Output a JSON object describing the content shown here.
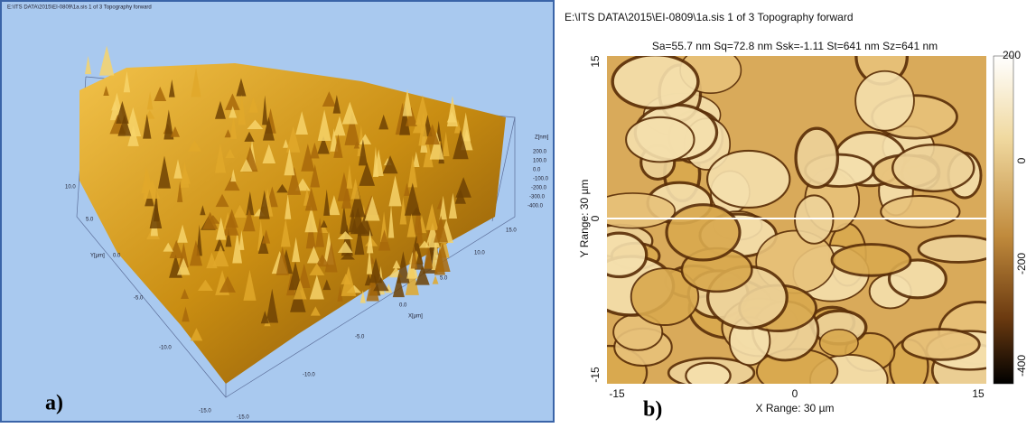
{
  "panel_a": {
    "title": "E:\\ITS DATA\\2015\\EI-0809\\1a.sis 1 of 3 Topography forward",
    "z_axis": {
      "label": "Z[nm]",
      "ticks": [
        "200.0",
        "100.0",
        "0.0",
        "-100.0",
        "-200.0",
        "-300.0",
        "-400.0"
      ]
    },
    "y_axis": {
      "label": "Y[µm]",
      "ticks": [
        "10.0",
        "5.0",
        "0.0",
        "-5.0",
        "-10.0",
        "-15.0"
      ]
    },
    "x_axis": {
      "label": "X[µm]",
      "ticks": [
        "15.0",
        "10.0",
        "5.0",
        "0.0",
        "-5.0",
        "-10.0",
        "-15.0"
      ]
    },
    "tag": "a)"
  },
  "panel_b": {
    "title": "E:\\ITS DATA\\2015\\EI-0809\\1a.sis 1 of 3 Topography forward",
    "stats": "Sa=55.7 nm  Sq=72.8 nm  Ssk=-1.11   St=641 nm  Sz=641 nm",
    "y_axis": {
      "label": "Y Range: 30 µm",
      "ticks": [
        "15",
        "0",
        "-15"
      ]
    },
    "x_axis": {
      "label": "X Range: 30 µm",
      "ticks": [
        "-15",
        "0",
        "15"
      ]
    },
    "colorbar_ticks": [
      "200",
      "0",
      "-200",
      "-400"
    ],
    "tag": "b)"
  }
}
